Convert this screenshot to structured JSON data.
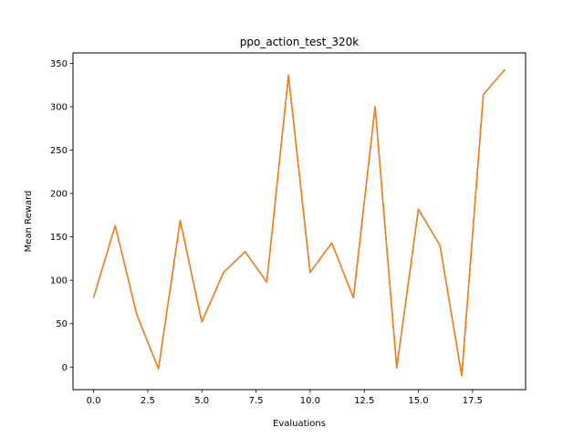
{
  "chart_data": {
    "type": "line",
    "title": "ppo_action_test_320k",
    "xlabel": "Evaluations",
    "ylabel": "Mean Reward",
    "xlim": [
      -0.95,
      19.95
    ],
    "ylim": [
      -26,
      362
    ],
    "xticks": [
      0,
      2.5,
      5,
      7.5,
      10,
      12.5,
      15,
      17.5
    ],
    "xtick_labels": [
      "0.0",
      "2.5",
      "5.0",
      "7.5",
      "10.0",
      "12.5",
      "15.0",
      "17.5"
    ],
    "yticks": [
      0,
      50,
      100,
      150,
      200,
      250,
      300,
      350
    ],
    "ytick_labels": [
      "0",
      "50",
      "100",
      "150",
      "200",
      "250",
      "300",
      "350"
    ],
    "grid": false,
    "series": [
      {
        "color": "#1f77b4",
        "x": [
          0,
          1,
          2,
          3,
          4,
          5,
          6,
          7,
          8,
          9,
          10,
          11,
          12,
          13,
          14,
          15,
          16,
          17,
          18,
          19
        ],
        "values": [
          80,
          163,
          60,
          -2,
          169,
          52,
          109,
          133,
          98,
          336,
          109,
          143,
          80,
          300,
          -1,
          182,
          140,
          -10,
          314,
          343
        ]
      },
      {
        "color": "#ff7f0e",
        "x": [
          0,
          1,
          2,
          3,
          4,
          5,
          6,
          7,
          8,
          9,
          10,
          11,
          12,
          13,
          14,
          15,
          16,
          17,
          18,
          19
        ],
        "values": [
          80,
          163,
          60,
          -2,
          169,
          52,
          109,
          133,
          98,
          336,
          109,
          143,
          80,
          300,
          -1,
          182,
          140,
          -10,
          314,
          343
        ]
      }
    ]
  }
}
